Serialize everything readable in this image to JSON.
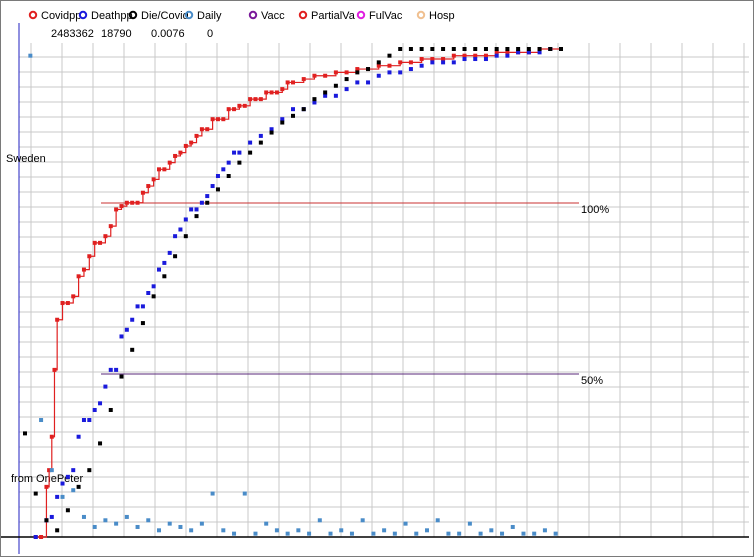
{
  "legend": [
    {
      "name": "Covidpp",
      "color": "#e02020",
      "value": "2483362"
    },
    {
      "name": "Deathpp",
      "color": "#1a1adc",
      "value": "18790"
    },
    {
      "name": "Die/Covid",
      "color": "#000000",
      "value": "0.0076"
    },
    {
      "name": "Daily",
      "color": "#4a8cc8",
      "value": "0"
    },
    {
      "name": "Vacc",
      "color": "#7a1a9a",
      "value": ""
    },
    {
      "name": "PartialVa",
      "color": "#e02020",
      "value": ""
    },
    {
      "name": "FulVac",
      "color": "#e020e0",
      "value": ""
    },
    {
      "name": "Hosp",
      "color": "#f0c090",
      "value": ""
    }
  ],
  "chart_data": {
    "type": "line",
    "title": "",
    "country_label": "Sweden",
    "source_label": "from OnePeter",
    "reference_lines": [
      {
        "label": "100%",
        "level": 1.0,
        "color": "#c83232"
      },
      {
        "label": "50%",
        "level": 0.5,
        "color": "#5a2a7a"
      }
    ],
    "grid": true,
    "legend_position": "top",
    "x_range": [
      0,
      100
    ],
    "y_range": [
      0,
      1.46
    ],
    "series": [
      {
        "name": "Covidpp",
        "color": "#e02020",
        "style": "line-markers",
        "x": [
          2,
          3,
          4,
          4.5,
          5,
          5.5,
          6,
          7,
          8,
          9,
          10,
          11,
          12,
          13,
          14,
          15,
          16,
          17,
          18,
          19,
          20,
          21,
          22,
          23,
          24,
          25,
          26,
          27,
          28,
          29,
          30,
          31,
          32,
          33,
          34,
          35,
          36,
          37,
          38,
          39,
          40,
          41,
          42,
          43,
          44,
          45,
          46,
          47,
          48,
          49,
          50,
          52,
          54,
          56,
          58,
          60,
          62,
          64,
          66,
          68,
          70,
          72,
          74,
          76,
          78,
          80,
          82,
          84,
          86,
          88,
          90,
          92,
          94,
          96,
          98,
          100
        ],
        "y": [
          0,
          0,
          0.15,
          0.2,
          0.3,
          0.5,
          0.65,
          0.7,
          0.7,
          0.72,
          0.78,
          0.8,
          0.84,
          0.88,
          0.88,
          0.9,
          0.93,
          0.98,
          0.99,
          1.0,
          1.0,
          1.0,
          1.03,
          1.05,
          1.07,
          1.1,
          1.1,
          1.12,
          1.14,
          1.15,
          1.17,
          1.18,
          1.2,
          1.22,
          1.22,
          1.25,
          1.25,
          1.25,
          1.28,
          1.28,
          1.29,
          1.29,
          1.31,
          1.31,
          1.31,
          1.33,
          1.33,
          1.33,
          1.34,
          1.36,
          1.36,
          1.37,
          1.38,
          1.38,
          1.39,
          1.39,
          1.4,
          1.4,
          1.41,
          1.41,
          1.42,
          1.42,
          1.43,
          1.43,
          1.43,
          1.44,
          1.44,
          1.44,
          1.44,
          1.45,
          1.45,
          1.45,
          1.45,
          1.46,
          1.46,
          1.46
        ]
      },
      {
        "name": "Deathpp",
        "color": "#1a1adc",
        "style": "markers",
        "x": [
          2,
          4,
          5,
          6,
          7,
          8,
          9,
          10,
          11,
          12,
          13,
          14,
          15,
          16,
          17,
          18,
          19,
          20,
          21,
          22,
          23,
          24,
          25,
          26,
          27,
          28,
          29,
          30,
          31,
          32,
          33,
          34,
          35,
          36,
          37,
          38,
          39,
          40,
          42,
          44,
          46,
          48,
          50,
          52,
          54,
          56,
          58,
          60,
          62,
          64,
          66,
          68,
          70,
          72,
          74,
          76,
          78,
          80,
          82,
          84,
          86,
          88,
          90,
          92,
          94,
          96,
          98,
          100
        ],
        "y": [
          0,
          0.05,
          0.06,
          0.12,
          0.16,
          0.18,
          0.2,
          0.3,
          0.35,
          0.35,
          0.38,
          0.4,
          0.45,
          0.5,
          0.5,
          0.6,
          0.62,
          0.65,
          0.69,
          0.69,
          0.73,
          0.75,
          0.8,
          0.82,
          0.85,
          0.9,
          0.92,
          0.95,
          0.98,
          0.98,
          1.0,
          1.02,
          1.05,
          1.08,
          1.1,
          1.12,
          1.15,
          1.15,
          1.18,
          1.2,
          1.22,
          1.25,
          1.28,
          1.28,
          1.3,
          1.32,
          1.32,
          1.34,
          1.36,
          1.36,
          1.38,
          1.39,
          1.39,
          1.4,
          1.41,
          1.42,
          1.42,
          1.42,
          1.43,
          1.43,
          1.43,
          1.44,
          1.44,
          1.45,
          1.45,
          1.45,
          1.46,
          1.46
        ]
      },
      {
        "name": "Die/Covid",
        "color": "#000000",
        "style": "markers",
        "x": [
          0,
          2,
          4,
          6,
          8,
          10,
          12,
          14,
          16,
          18,
          20,
          22,
          24,
          26,
          28,
          30,
          32,
          34,
          36,
          38,
          40,
          42,
          44,
          46,
          48,
          50,
          52,
          54,
          56,
          58,
          60,
          62,
          64,
          66,
          68,
          70,
          72,
          74,
          76,
          78,
          80,
          82,
          84,
          86,
          88,
          90,
          92,
          94,
          96,
          98,
          100
        ],
        "y": [
          0.31,
          0.13,
          0.05,
          0.02,
          0.08,
          0.15,
          0.2,
          0.28,
          0.38,
          0.48,
          0.56,
          0.64,
          0.72,
          0.78,
          0.84,
          0.9,
          0.96,
          1.0,
          1.04,
          1.08,
          1.12,
          1.15,
          1.18,
          1.21,
          1.24,
          1.26,
          1.28,
          1.31,
          1.33,
          1.35,
          1.37,
          1.39,
          1.4,
          1.42,
          1.44,
          1.46,
          1.46,
          1.46,
          1.46,
          1.46,
          1.46,
          1.46,
          1.46,
          1.46,
          1.46,
          1.46,
          1.46,
          1.46,
          1.46,
          1.46,
          1.46
        ],
        "note": "declining-ratio style series"
      },
      {
        "name": "Daily",
        "color": "#4a8cc8",
        "style": "markers",
        "x": [
          1,
          3,
          5,
          7,
          9,
          11,
          13,
          15,
          17,
          19,
          21,
          23,
          25,
          27,
          29,
          31,
          33,
          35,
          37,
          39,
          41,
          43,
          45,
          47,
          49,
          51,
          53,
          55,
          57,
          59,
          61,
          63,
          65,
          67,
          69,
          71,
          73,
          75,
          77,
          79,
          81,
          83,
          85,
          87,
          89,
          91,
          93,
          95,
          97,
          99
        ],
        "y": [
          1.44,
          0.35,
          0.2,
          0.12,
          0.14,
          0.06,
          0.03,
          0.05,
          0.04,
          0.06,
          0.03,
          0.05,
          0.02,
          0.04,
          0.03,
          0.02,
          0.04,
          0.13,
          0.02,
          0.01,
          0.13,
          0.01,
          0.04,
          0.02,
          0.01,
          0.02,
          0.01,
          0.05,
          0.01,
          0.02,
          0.01,
          0.05,
          0.01,
          0.02,
          0.01,
          0.04,
          0.01,
          0.02,
          0.05,
          0.01,
          0.01,
          0.04,
          0.01,
          0.02,
          0.01,
          0.03,
          0.01,
          0.01,
          0.02,
          0.01
        ]
      }
    ]
  }
}
